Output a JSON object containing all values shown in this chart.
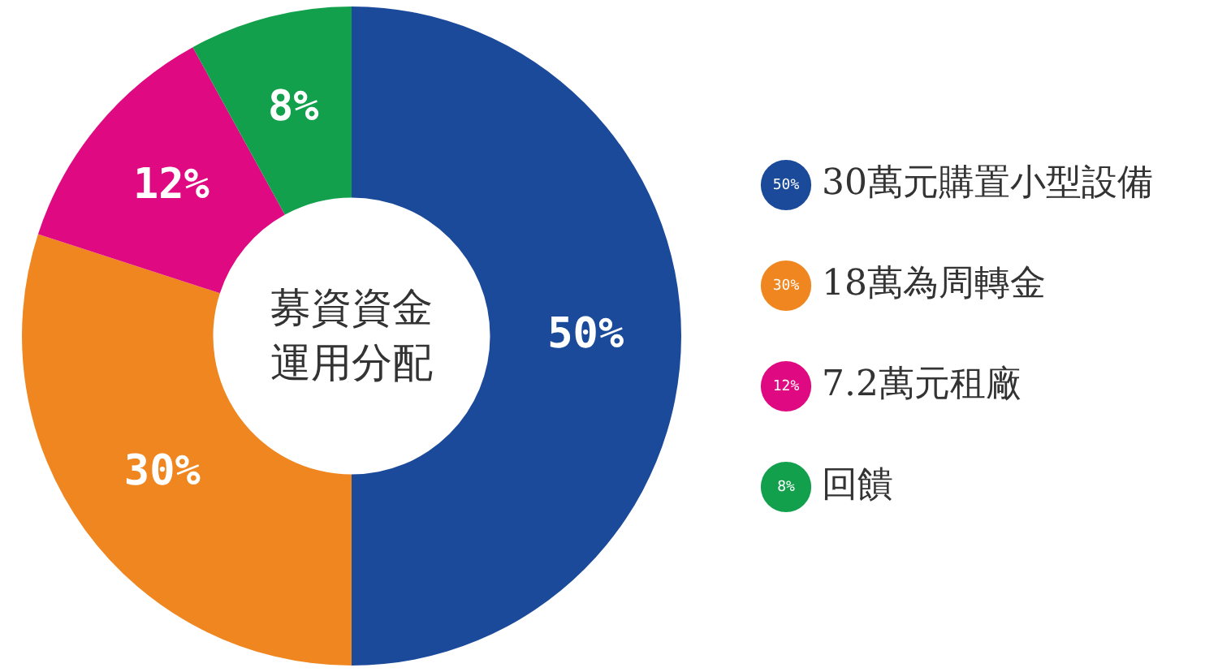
{
  "chart_data": {
    "type": "donut",
    "title": "募資資金運用分配",
    "categories": [
      "30萬元購置小型設備",
      "18萬為周轉金",
      "7.2萬元租廠",
      "回饋"
    ],
    "values": [
      50,
      30,
      12,
      8
    ],
    "value_labels": [
      "50%",
      "30%",
      "12%",
      "8%"
    ],
    "colors": [
      "#1b4a9b",
      "#f0861f",
      "#df0a82",
      "#12a04c"
    ],
    "legend": "right"
  }
}
